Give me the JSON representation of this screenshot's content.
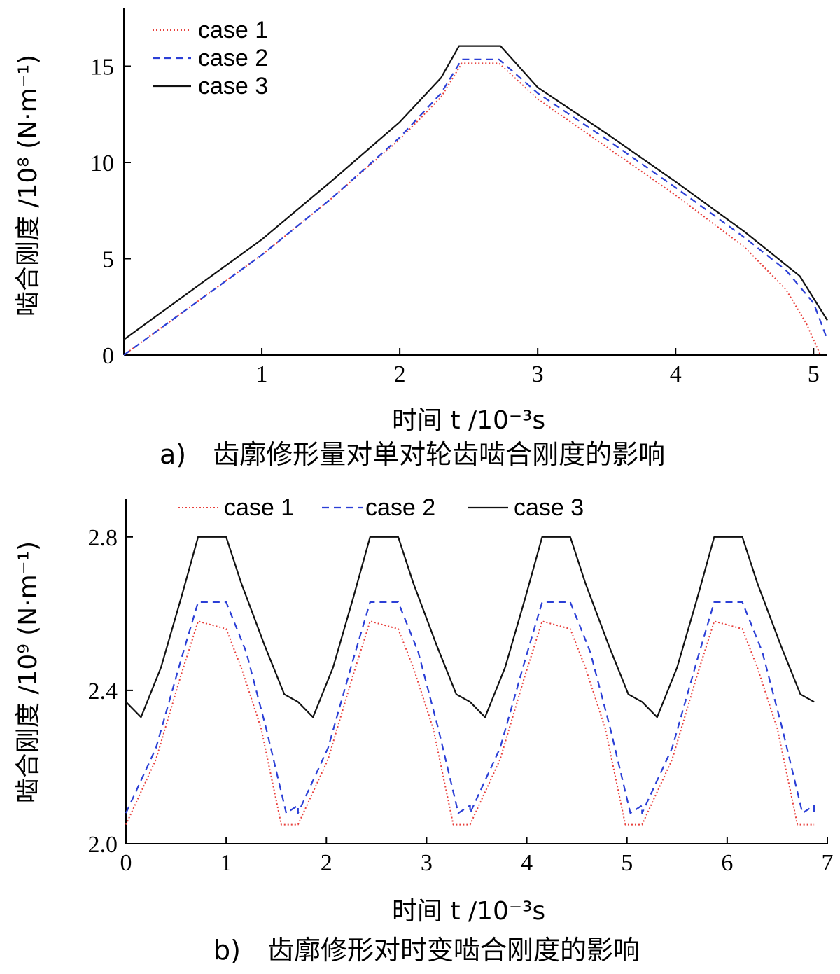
{
  "series_styles": [
    {
      "color": "#e8403c",
      "dash": "2,3",
      "width": 2
    },
    {
      "color": "#2b3fd6",
      "dash": "10,7",
      "width": 2.2
    },
    {
      "color": "#111111",
      "dash": "",
      "width": 2.2
    }
  ],
  "chart_data": [
    {
      "type": "line",
      "caption": "a)　齿廓修形量对单对轮齿啮合刚度的影响",
      "xlabel": "时间 t /10⁻³s",
      "ylabel": "啮合刚度 /10⁸ (N·m⁻¹)",
      "xlim": [
        0,
        5.1
      ],
      "ylim": [
        0,
        18
      ],
      "xticks": [
        1,
        2,
        3,
        4,
        5
      ],
      "yticks": [
        0,
        5,
        10,
        15
      ],
      "legend_position": "top-left",
      "grid": false,
      "series": [
        {
          "name": "case 1",
          "points": [
            [
              0,
              0
            ],
            [
              0.5,
              2.6
            ],
            [
              1.0,
              5.2
            ],
            [
              1.5,
              8.1
            ],
            [
              2.0,
              11.2
            ],
            [
              2.3,
              13.4
            ],
            [
              2.45,
              15.15
            ],
            [
              2.72,
              15.15
            ],
            [
              3.0,
              13.3
            ],
            [
              3.5,
              10.8
            ],
            [
              4.0,
              8.3
            ],
            [
              4.5,
              5.6
            ],
            [
              4.8,
              3.4
            ],
            [
              4.95,
              1.6
            ],
            [
              5.05,
              0
            ]
          ]
        },
        {
          "name": "case 2",
          "points": [
            [
              0,
              0
            ],
            [
              0.5,
              2.6
            ],
            [
              1.0,
              5.2
            ],
            [
              1.5,
              8.1
            ],
            [
              2.0,
              11.3
            ],
            [
              2.3,
              13.6
            ],
            [
              2.45,
              15.35
            ],
            [
              2.72,
              15.35
            ],
            [
              3.0,
              13.6
            ],
            [
              3.5,
              11.2
            ],
            [
              4.0,
              8.7
            ],
            [
              4.5,
              6.1
            ],
            [
              4.8,
              4.4
            ],
            [
              5.0,
              2.7
            ],
            [
              5.1,
              0.8
            ]
          ]
        },
        {
          "name": "case 3",
          "points": [
            [
              0,
              0.8
            ],
            [
              0.5,
              3.4
            ],
            [
              1.0,
              6.0
            ],
            [
              1.5,
              9.0
            ],
            [
              2.0,
              12.1
            ],
            [
              2.3,
              14.4
            ],
            [
              2.43,
              16.05
            ],
            [
              2.73,
              16.05
            ],
            [
              3.0,
              13.9
            ],
            [
              3.5,
              11.5
            ],
            [
              4.0,
              9.0
            ],
            [
              4.5,
              6.4
            ],
            [
              4.9,
              4.1
            ],
            [
              5.1,
              1.8
            ]
          ]
        }
      ]
    },
    {
      "type": "line",
      "caption": "b)　齿廓修形对时变啮合刚度的影响",
      "xlabel": "时间 t /10⁻³s",
      "ylabel": "啮合刚度 /10⁹ (N·m⁻¹)",
      "xlim": [
        0,
        7
      ],
      "ylim": [
        2.0,
        2.9
      ],
      "xticks": [
        0,
        1,
        2,
        3,
        4,
        5,
        6,
        7
      ],
      "yticks": [
        2.0,
        2.4,
        2.8
      ],
      "legend_position": "top",
      "grid": false,
      "period": 1.717,
      "series": [
        {
          "name": "case 1",
          "cycle": [
            [
              0,
              2.05
            ],
            [
              0.3,
              2.22
            ],
            [
              0.55,
              2.44
            ],
            [
              0.72,
              2.58
            ],
            [
              1.0,
              2.56
            ],
            [
              1.15,
              2.46
            ],
            [
              1.35,
              2.3
            ],
            [
              1.55,
              2.05
            ],
            [
              1.717,
              2.05
            ]
          ]
        },
        {
          "name": "case 2",
          "cycle": [
            [
              0,
              2.08
            ],
            [
              0.3,
              2.25
            ],
            [
              0.55,
              2.48
            ],
            [
              0.72,
              2.63
            ],
            [
              1.0,
              2.63
            ],
            [
              1.2,
              2.5
            ],
            [
              1.4,
              2.3
            ],
            [
              1.6,
              2.08
            ],
            [
              1.717,
              2.1
            ]
          ]
        },
        {
          "name": "case 3",
          "cycle": [
            [
              0,
              2.37
            ],
            [
              0.15,
              2.33
            ],
            [
              0.35,
              2.46
            ],
            [
              0.55,
              2.64
            ],
            [
              0.72,
              2.8
            ],
            [
              1.0,
              2.8
            ],
            [
              1.15,
              2.68
            ],
            [
              1.38,
              2.52
            ],
            [
              1.58,
              2.39
            ],
            [
              1.717,
              2.37
            ]
          ]
        }
      ]
    }
  ]
}
